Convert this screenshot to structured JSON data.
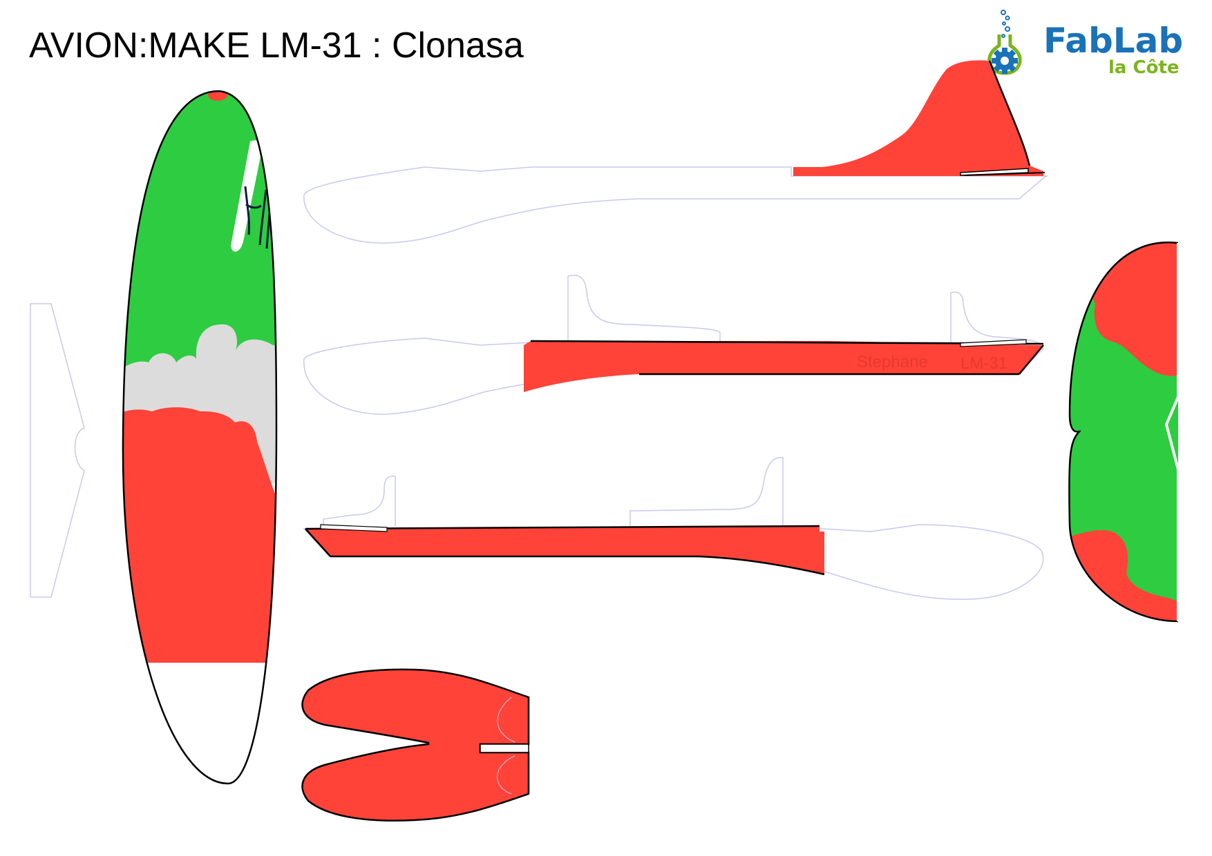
{
  "title": "AVION:MAKE LM-31 : Clonasa",
  "logo": {
    "main": "FabLab",
    "sub": "la Côte",
    "main_color": "#1a72b8",
    "sub_color": "#7ab51d",
    "icon": "flask-gear-icon"
  },
  "fuselage_label": {
    "name": "Stephane",
    "model": "LM-31"
  },
  "colors": {
    "red": "#ff4338",
    "green": "#2ecc40",
    "grey": "#dcdcdc",
    "outline": "#000000",
    "cut_line": "#c8c8f0",
    "stroke_dark": "#0c1e3c"
  }
}
